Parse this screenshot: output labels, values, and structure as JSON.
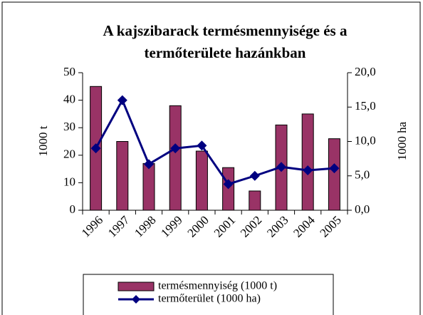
{
  "chart_data": {
    "type": "bar_line",
    "title": [
      "A kajszibarack termésmennyisége és a",
      "termőterülete hazánkban"
    ],
    "ylabel": "1000 t",
    "y2label": "1000 ha",
    "categories": [
      "1996",
      "1997",
      "1998",
      "1999",
      "2000",
      "2001",
      "2002",
      "2003",
      "2004",
      "2005"
    ],
    "series": [
      {
        "name": "termésmennyiség (1000 t)",
        "type": "bar",
        "axis": "y",
        "color": "#993366",
        "values": [
          45,
          25,
          17,
          38,
          21.5,
          15.5,
          7,
          31,
          35,
          26
        ]
      },
      {
        "name": "termőterület (1000 ha)",
        "type": "line",
        "axis": "y2",
        "color": "#000080",
        "values": [
          9.0,
          16.0,
          6.7,
          9.0,
          9.4,
          3.8,
          5.0,
          6.3,
          5.8,
          6.1
        ]
      }
    ],
    "ylim": [
      0,
      50
    ],
    "yticks": [
      0,
      10,
      20,
      30,
      40,
      50
    ],
    "y2lim": [
      0,
      20
    ],
    "y2ticks": [
      {
        "value": 0,
        "label": "0,0"
      },
      {
        "value": 5,
        "label": "5,0"
      },
      {
        "value": 10,
        "label": "10,0"
      },
      {
        "value": 15,
        "label": "15,0"
      },
      {
        "value": 20,
        "label": "20,0"
      }
    ],
    "legend": "bottom"
  }
}
